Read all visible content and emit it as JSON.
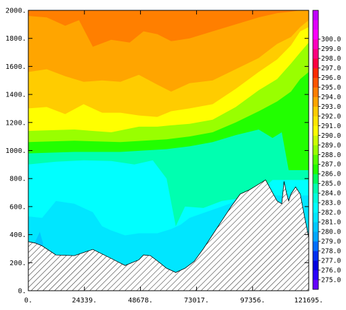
{
  "chart_data": {
    "type": "heatmap",
    "title": "",
    "xlabel": "",
    "ylabel": "",
    "x_range": [
      0,
      121695
    ],
    "y_range": [
      0,
      2000
    ],
    "x_ticks": [
      "0.",
      "24339.",
      "48678.",
      "73017.",
      "97356.",
      "121695."
    ],
    "y_ticks": [
      "0.",
      "200.",
      "400.",
      "600.",
      "800.",
      "1000.",
      "1200.",
      "1400.",
      "1600.",
      "1800.",
      "2000."
    ],
    "colorbar": {
      "min": 274.5,
      "step": 1,
      "labels": [
        "275.0",
        "276.0",
        "277.0",
        "278.0",
        "279.0",
        "280.0",
        "281.0",
        "282.0",
        "283.0",
        "284.0",
        "285.0",
        "286.0",
        "287.0",
        "288.0",
        "289.0",
        "290.0",
        "291.0",
        "292.0",
        "293.0",
        "294.0",
        "295.0",
        "296.0",
        "297.0",
        "298.0",
        "299.0",
        "300.0"
      ],
      "colors": [
        "#6600ff",
        "#2a00ff",
        "#0000e0",
        "#0030f0",
        "#0070ff",
        "#00a8ff",
        "#00c8ff",
        "#00e6ff",
        "#00ffff",
        "#00ffdc",
        "#00ffb0",
        "#00ff60",
        "#22ff00",
        "#55ff00",
        "#99ff00",
        "#ccff00",
        "#ffff00",
        "#ffe600",
        "#ffcc00",
        "#ffa500",
        "#ff7f00",
        "#ff5500",
        "#ff2a00",
        "#ff0040",
        "#ff0080",
        "#ff00c0",
        "#ff00ff",
        "#e000ff",
        "#c000ff"
      ]
    },
    "bathymetry": {
      "x": [
        0,
        3000,
        6000,
        12000,
        20000,
        28000,
        36000,
        42000,
        48000,
        50000,
        53000,
        57000,
        60000,
        64000,
        68000,
        72000,
        76000,
        80000,
        84000,
        88000,
        92000,
        96000,
        100000,
        103000,
        106000,
        108000,
        110000,
        111000,
        112000,
        113000,
        114000,
        116000,
        118000,
        120000,
        121695
      ],
      "depth": [
        350,
        340,
        320,
        255,
        250,
        295,
        230,
        180,
        220,
        255,
        250,
        200,
        160,
        130,
        160,
        210,
        300,
        400,
        500,
        600,
        690,
        720,
        760,
        790,
        700,
        640,
        620,
        780,
        700,
        640,
        690,
        740,
        690,
        520,
        380
      ]
    },
    "isotherms": [
      {
        "level": 281.5,
        "x": [
          0,
          6000,
          12000,
          20000,
          28000,
          32000,
          36000,
          42000,
          48000,
          56000,
          62000,
          66000,
          70000,
          76000,
          84000,
          92000,
          96000
        ],
        "y": [
          530,
          520,
          640,
          620,
          560,
          460,
          430,
          395,
          410,
          410,
          440,
          470,
          520,
          555,
          600,
          650,
          680
        ]
      },
      {
        "level": 283.5,
        "x": [
          0,
          12000,
          24000,
          36000,
          46000,
          54000,
          60000,
          64000,
          68000,
          76000,
          84000,
          92000,
          100000,
          106000
        ],
        "y": [
          900,
          920,
          930,
          925,
          900,
          930,
          800,
          460,
          600,
          590,
          640,
          660,
          700,
          790
        ]
      },
      {
        "level": 285.5,
        "x": [
          0,
          20000,
          40000,
          60000,
          70000,
          80000,
          90000,
          100000,
          106000,
          110000,
          113000
        ],
        "y": [
          980,
          990,
          990,
          1010,
          1030,
          1060,
          1110,
          1150,
          1090,
          1130,
          860
        ]
      },
      {
        "level": 287.5,
        "x": [
          0,
          20000,
          40000,
          60000,
          70000,
          80000,
          90000,
          100000,
          108000,
          114000,
          118000,
          121695
        ],
        "y": [
          1060,
          1070,
          1060,
          1080,
          1100,
          1130,
          1200,
          1280,
          1350,
          1420,
          1510,
          1560
        ]
      },
      {
        "level": 289.5,
        "x": [
          0,
          20000,
          36000,
          48000,
          56000,
          62000,
          70000,
          80000,
          90000,
          100000,
          108000,
          114000,
          118000,
          121695
        ],
        "y": [
          1140,
          1150,
          1130,
          1170,
          1170,
          1180,
          1190,
          1220,
          1310,
          1430,
          1510,
          1620,
          1700,
          1770
        ]
      },
      {
        "level": 291.5,
        "x": [
          0,
          8000,
          16000,
          24000,
          32000,
          40000,
          48000,
          56000,
          62000,
          70000,
          80000,
          90000,
          100000,
          108000,
          114000,
          118000,
          121695
        ],
        "y": [
          1300,
          1310,
          1260,
          1330,
          1270,
          1270,
          1250,
          1240,
          1280,
          1300,
          1330,
          1440,
          1560,
          1650,
          1750,
          1850,
          1880
        ]
      },
      {
        "level": 292.5,
        "x": [
          0,
          8000,
          16000,
          24000,
          32000,
          40000,
          48000,
          56000,
          62000,
          70000,
          80000,
          90000,
          100000,
          108000,
          114000,
          118000,
          121695
        ],
        "y": [
          1560,
          1580,
          1530,
          1490,
          1500,
          1490,
          1540,
          1470,
          1420,
          1480,
          1500,
          1580,
          1660,
          1760,
          1810,
          1880,
          1930
        ]
      },
      {
        "level": 293.5,
        "x": [
          0,
          8000,
          16000,
          22000,
          28000,
          36000,
          44000,
          50000,
          56000,
          62000,
          70000,
          80000,
          90000,
          100000,
          108000,
          114000,
          118000,
          121695
        ],
        "y": [
          1960,
          1950,
          1890,
          1930,
          1740,
          1790,
          1770,
          1850,
          1830,
          1780,
          1800,
          1850,
          1900,
          1950,
          1980,
          1990,
          2000,
          2000
        ]
      }
    ],
    "pockets": [
      {
        "level": 279.5,
        "x": [
          3000,
          5000,
          6500,
          5000,
          3000
        ],
        "y": [
          350,
          420,
          330,
          300,
          330
        ]
      }
    ]
  }
}
